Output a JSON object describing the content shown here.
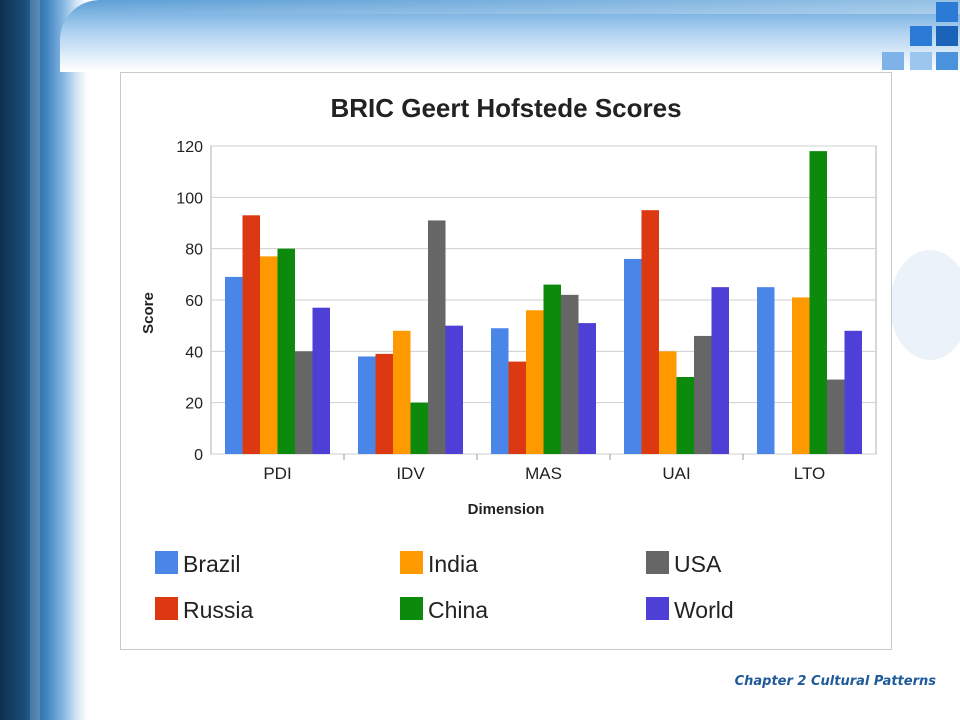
{
  "footer": {
    "text": "Chapter 2 Cultural Patterns"
  },
  "colors": {
    "decor_squares": [
      "#1f6fc7",
      "#3d87d8",
      "#6aa7e6",
      "#9dc6ef"
    ]
  },
  "chart_data": {
    "type": "bar",
    "title": "BRIC Geert Hofstede Scores",
    "xlabel": "Dimension",
    "ylabel": "Score",
    "ylim": [
      0,
      120
    ],
    "yticks": [
      0,
      20,
      40,
      60,
      80,
      100,
      120
    ],
    "grid": true,
    "legend_position": "bottom",
    "categories": [
      "PDI",
      "IDV",
      "MAS",
      "UAI",
      "LTO"
    ],
    "series": [
      {
        "name": "Brazil",
        "color": "#4a86e8",
        "values": [
          69,
          38,
          49,
          76,
          65
        ]
      },
      {
        "name": "Russia",
        "color": "#dc3912",
        "values": [
          93,
          39,
          36,
          95,
          null
        ]
      },
      {
        "name": "India",
        "color": "#ff9900",
        "values": [
          77,
          48,
          56,
          40,
          61
        ]
      },
      {
        "name": "China",
        "color": "#0b8a0b",
        "values": [
          80,
          20,
          66,
          30,
          118
        ]
      },
      {
        "name": "USA",
        "color": "#666666",
        "values": [
          40,
          91,
          62,
          46,
          29
        ]
      },
      {
        "name": "World",
        "color": "#4e3fd6",
        "values": [
          57,
          50,
          51,
          65,
          48
        ]
      }
    ],
    "legend_order": [
      "Brazil",
      "India",
      "USA",
      "Russia",
      "China",
      "World"
    ]
  }
}
